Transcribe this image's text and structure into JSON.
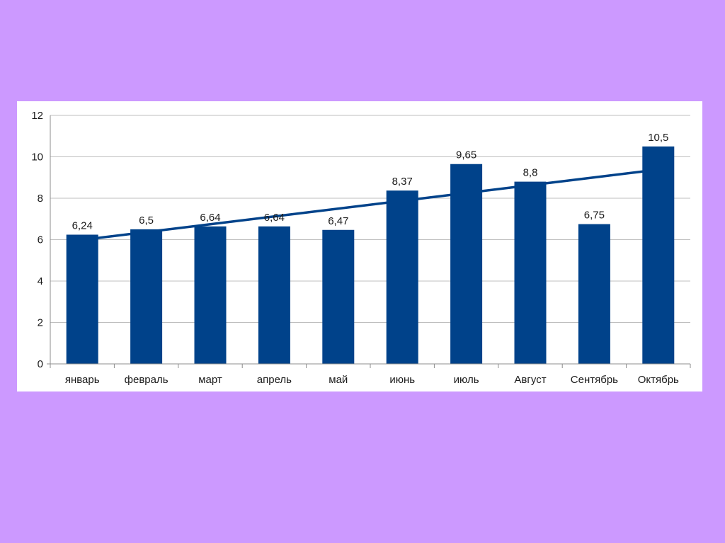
{
  "slide": {
    "background_color": "#cc99ff",
    "panel_color": "#ffffff"
  },
  "chart_data": {
    "type": "bar",
    "categories": [
      "январь",
      "февраль",
      "март",
      "апрель",
      "май",
      "июнь",
      "июль",
      "Август",
      "Сентябрь",
      "Октябрь"
    ],
    "values": [
      6.24,
      6.5,
      6.64,
      6.64,
      6.47,
      8.37,
      9.65,
      8.8,
      6.75,
      10.5
    ],
    "data_labels": [
      "6,24",
      "6,5",
      "6,64",
      "6,64",
      "6,47",
      "8,37",
      "9,65",
      "8,8",
      "6,75",
      "10,5"
    ],
    "ylim": [
      0,
      12
    ],
    "yticks": [
      0,
      2,
      4,
      6,
      8,
      10,
      12
    ],
    "grid": true,
    "legend": "none",
    "bar_color": "#00428a",
    "trendline": {
      "type": "linear",
      "color": "#00428a",
      "start_value": 6.0,
      "end_value": 9.3
    },
    "title": "",
    "xlabel": "",
    "ylabel": ""
  }
}
